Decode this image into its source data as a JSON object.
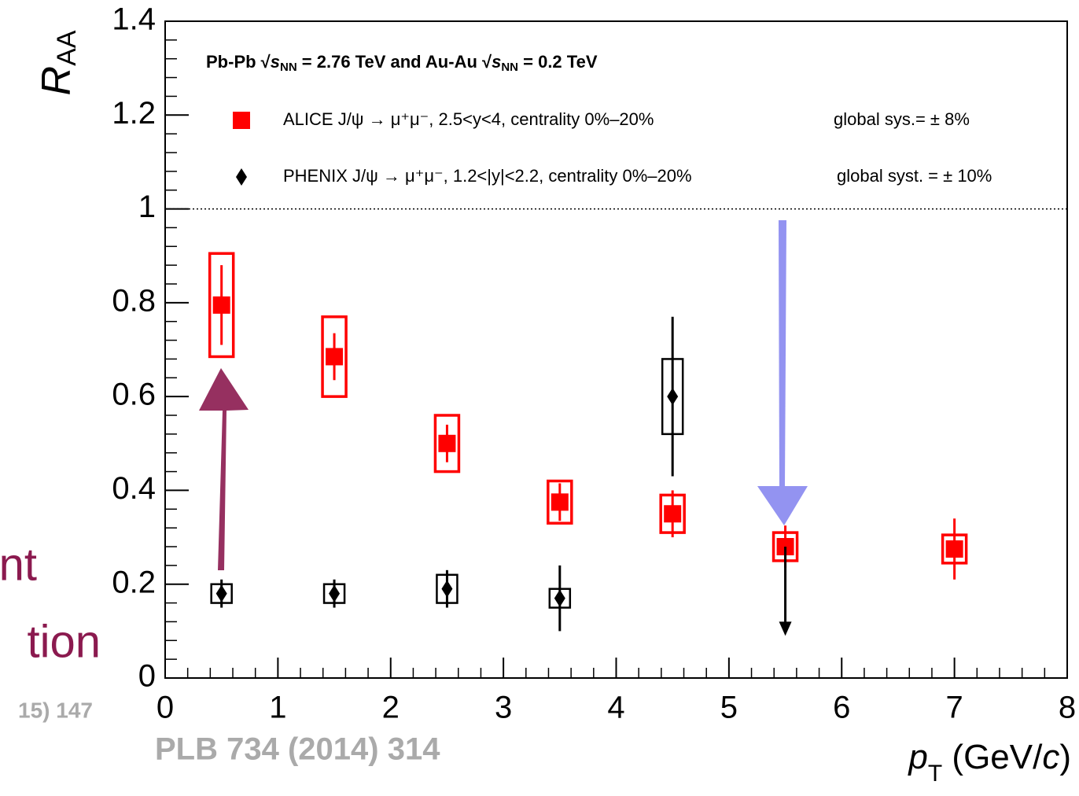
{
  "chart_data": {
    "type": "scatter",
    "legend_header": [
      "Pb-Pb ",
      "√",
      "s",
      "NN",
      " = 2.76 TeV and Au-Au ",
      "√",
      "s",
      "NN",
      " = 0.2 TeV"
    ],
    "ylabel": [
      "R",
      "AA"
    ],
    "xlabel": [
      "p",
      "T",
      " (GeV/",
      "c",
      ")"
    ],
    "xlim": [
      0,
      8
    ],
    "xticks": [
      0,
      1,
      2,
      3,
      4,
      5,
      6,
      7,
      8
    ],
    "ylim": [
      0,
      1.4
    ],
    "yticks": [
      0,
      0.2,
      0.4,
      0.6,
      0.8,
      1,
      1.2,
      1.4
    ],
    "reference_line": 1,
    "series": [
      {
        "name": "ALICE J/ψ → μ⁺μ⁻, 2.5<y<4, centrality 0%–20%",
        "note": "global sys.= ± 8%",
        "color": "#ff0000",
        "marker": "square",
        "x": [
          0.5,
          1.5,
          2.5,
          3.5,
          4.5,
          5.5,
          7
        ],
        "values": [
          0.795,
          0.685,
          0.5,
          0.375,
          0.35,
          0.28,
          0.275
        ],
        "errors": [
          0.085,
          0.05,
          0.04,
          0.04,
          0.05,
          0.045,
          0.065
        ],
        "sys": [
          0.11,
          0.085,
          0.06,
          0.045,
          0.04,
          0.03,
          0.03
        ]
      },
      {
        "name": "PHENIX J/ψ → μ⁺μ⁻, 1.2<|y|<2.2, centrality 0%–20%",
        "note": "global syst. = ± 10%",
        "color": "#000000",
        "marker": "diamond",
        "x": [
          0.5,
          1.5,
          2.5,
          3.5,
          4.5
        ],
        "values": [
          0.18,
          0.18,
          0.19,
          0.17,
          0.6
        ],
        "errors": [
          0.03,
          0.03,
          0.04,
          0.07,
          0.17
        ],
        "sys": [
          0.02,
          0.02,
          0.03,
          0.02,
          0.08
        ],
        "upper_limit": {
          "x": 5.5,
          "value": 0.28,
          "arrow_to": 0.09
        }
      }
    ],
    "side_texts": [
      "nt",
      "tion",
      "15) 147"
    ],
    "reference": "PLB 734 (2014) 314"
  }
}
